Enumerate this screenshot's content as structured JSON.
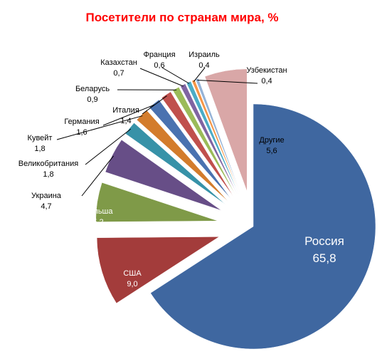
{
  "chart_data": {
    "type": "pie",
    "title": "Посетители по странам мира, %",
    "slices": [
      {
        "label": "Россия",
        "value": "65,8",
        "color": "#3f67a0",
        "explode": 0
      },
      {
        "label": "США",
        "value": "9,0",
        "color": "#a33c3b",
        "explode": 1
      },
      {
        "label": "Польша",
        "value": "5,2",
        "color": "#7f9a48",
        "explode": 1
      },
      {
        "label": "Украина",
        "value": "4,7",
        "color": "#674e87",
        "explode": 1
      },
      {
        "label": "Великобритания",
        "value": "1,8",
        "color": "#3792a8",
        "explode": 1
      },
      {
        "label": "Кувейт",
        "value": "1,8",
        "color": "#d37c2c",
        "explode": 1
      },
      {
        "label": "Германия",
        "value": "1,6",
        "color": "#4a72b0",
        "explode": 1
      },
      {
        "label": "Италия",
        "value": "1,4",
        "color": "#c0504d",
        "explode": 1
      },
      {
        "label": "Беларусь",
        "value": "0,9",
        "color": "#9bbb59",
        "explode": 1
      },
      {
        "label": "Казахстан",
        "value": "0,7",
        "color": "#8064a2",
        "explode": 1
      },
      {
        "label": "Франция",
        "value": "0,6",
        "color": "#4bacc6",
        "explode": 1
      },
      {
        "label": "Израиль",
        "value": "0,4",
        "color": "#f79646",
        "explode": 1
      },
      {
        "label": "Узбекистан",
        "value": "0,4",
        "color": "#95b3d7",
        "explode": 1
      },
      {
        "label": "Другие",
        "value": "5,6",
        "color": "#d9a7a7",
        "explode": 1
      }
    ]
  }
}
